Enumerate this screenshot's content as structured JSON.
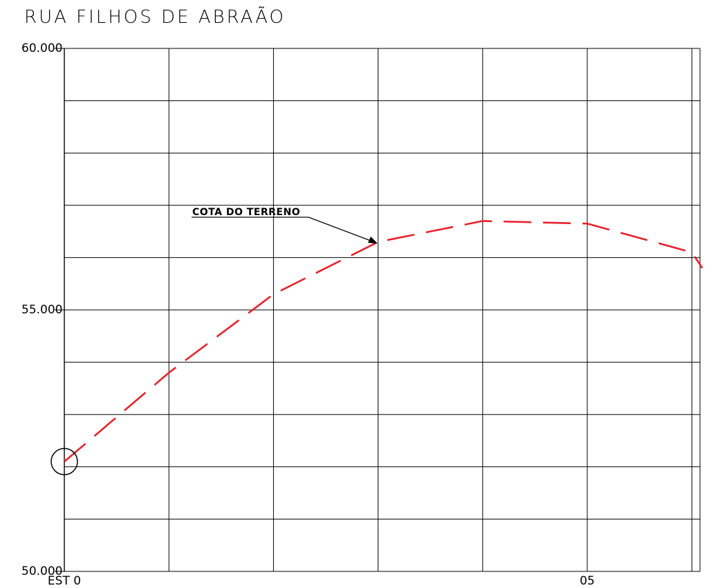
{
  "title": "RUA FILHOS DE ABRAÃO",
  "annotation": "COTA DO TERRENO",
  "colors": {
    "profile": "#e8212c",
    "grid": "#000000"
  },
  "chart_data": {
    "type": "line",
    "title": "RUA FILHOS DE ABRAÃO",
    "xlabel": "",
    "ylabel": "",
    "ylim": [
      50.0,
      60.0
    ],
    "xlim": [
      0,
      6.1
    ],
    "yticks": [
      {
        "value": 50.0,
        "label": "50.000"
      },
      {
        "value": 55.0,
        "label": "55.000"
      },
      {
        "value": 60.0,
        "label": "60.000"
      }
    ],
    "xticks": [
      {
        "value": 0,
        "label": "EST 0"
      },
      {
        "value": 5,
        "label": "05"
      }
    ],
    "grid": true,
    "ygrid_step": 1.0,
    "xgrid_step": 1.0,
    "xgrid_extra": [
      6.0
    ],
    "series": [
      {
        "style": "dashed",
        "color": "#e8212c",
        "x": [
          0,
          1,
          2,
          3,
          4,
          5,
          6,
          6.1
        ],
        "y": [
          52.1,
          53.8,
          55.3,
          56.3,
          56.7,
          56.65,
          56.1,
          55.8
        ]
      }
    ],
    "annotations": [
      {
        "text": "COTA DO TERRENO",
        "x": 3,
        "y": 56.3
      }
    ],
    "marker": {
      "shape": "circle",
      "x": 0,
      "y": 52.1
    }
  }
}
